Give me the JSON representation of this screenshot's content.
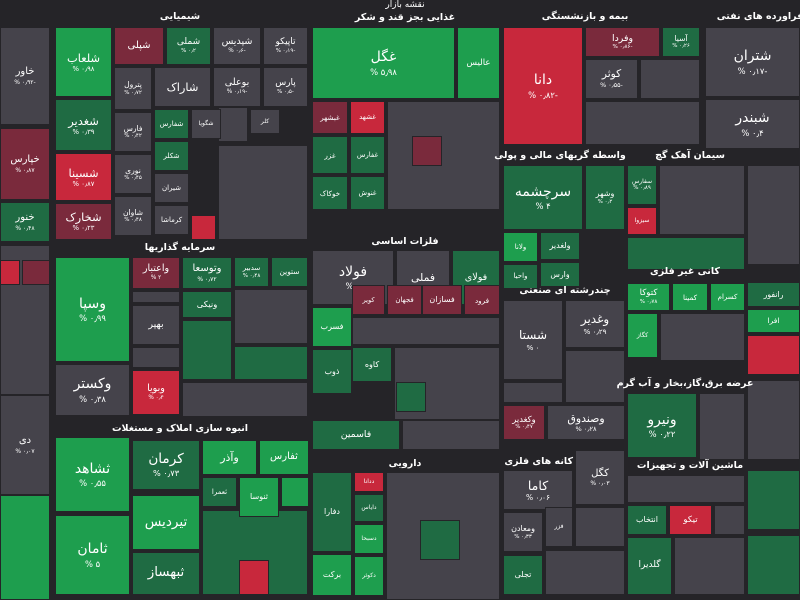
{
  "header": {
    "title": "نقشه بازار"
  },
  "sectors": [
    {
      "title": "شیمیایی",
      "tiles": [
        {
          "label": "شلعاب",
          "change": "۰٫۹۸ %",
          "color": "#1e9e4e"
        },
        {
          "label": "شپلی",
          "color": "#7a2a3c"
        },
        {
          "label": "شملی",
          "change": "۰٫۲ %",
          "color": "#1f6b43"
        },
        {
          "label": "شپدیس",
          "change": "-۰٫۶ %",
          "color": "#45434b"
        },
        {
          "label": "تاپیکو",
          "change": "-۰٫۱۹ %",
          "color": "#45434b"
        },
        {
          "label": "شغدیر",
          "change": "۰٫۳۹ %",
          "color": "#1f6b43"
        },
        {
          "label": "پترول",
          "change": "۰٫۷۲ %",
          "color": "#45434b"
        },
        {
          "label": "بوعلی",
          "change": "-۰٫۱۹ %",
          "color": "#45434b"
        },
        {
          "label": "پارس",
          "change": "-۰٫۵ %",
          "color": "#45434b"
        },
        {
          "label": "شاراک",
          "color": "#45434b"
        },
        {
          "label": "فارس",
          "change": "۰٫۴۲ %",
          "color": "#45434b"
        },
        {
          "label": "شفارس",
          "color": "#1f6b43"
        },
        {
          "label": "شگویا",
          "color": "#45434b"
        },
        {
          "label": "کلر",
          "color": "#45434b"
        },
        {
          "label": "شسینا",
          "change": "۰٫۸۷ %",
          "color": "#c8283c"
        },
        {
          "label": "نوری",
          "change": "۰٫۴۵ %",
          "color": "#45434b"
        },
        {
          "label": "شکلر",
          "color": "#1f6b43"
        },
        {
          "label": "شیران",
          "color": "#45434b"
        },
        {
          "label": "شخارک",
          "change": "۰٫۲۳ %",
          "color": "#7a2a3c"
        },
        {
          "label": "شاوان",
          "change": "۰٫۴۸ %",
          "color": "#45434b"
        },
        {
          "label": "کرماشا",
          "color": "#45434b"
        }
      ]
    },
    {
      "title": "سرمایه گذاریها",
      "tiles": [
        {
          "label": "وسپا",
          "change": "۰٫۹۹ %",
          "color": "#1e9e4e"
        },
        {
          "label": "واعتبار",
          "change": "۲ %",
          "color": "#7a2a3c"
        },
        {
          "label": "وتوسعا",
          "change": "۰٫۷۲ %",
          "color": "#1f6b43"
        },
        {
          "label": "سدبیر",
          "change": "۰٫۴۸ %",
          "color": "#1f6b43"
        },
        {
          "label": "ستوین",
          "color": "#1f6b43"
        },
        {
          "label": "ونیکی",
          "color": "#1f6b43"
        },
        {
          "label": "بهپر",
          "color": "#45434b"
        },
        {
          "label": "وکستر",
          "change": "۰٫۳۸ %",
          "color": "#45434b"
        },
        {
          "label": "وبویا",
          "change": "۰٫۴ %",
          "color": "#c8283c"
        }
      ]
    },
    {
      "title": "انبوه سازی املاک و مستغلات",
      "tiles": [
        {
          "label": "ثشاهد",
          "change": "۰٫۵۵ %",
          "color": "#1e9e4e"
        },
        {
          "label": "ثامان",
          "change": "۵ %",
          "color": "#1e9e4e"
        },
        {
          "label": "کرمان",
          "change": "۰٫۷۳ %",
          "color": "#1f6b43"
        },
        {
          "label": "وآذر",
          "color": "#1e9e4e"
        },
        {
          "label": "ثفارس",
          "color": "#1e9e4e"
        },
        {
          "label": "ثعمرا",
          "color": "#1f6b43"
        },
        {
          "label": "ثنوسا",
          "color": "#1e9e4e"
        },
        {
          "label": "تیردیس",
          "color": "#1e9e4e"
        },
        {
          "label": "ثبهساز",
          "color": "#1f6b43"
        }
      ]
    },
    {
      "title": "غذایی بجز قند و شکر",
      "tiles": [
        {
          "label": "غگل",
          "change": "۵٫۹۸ %",
          "color": "#1e9e4e"
        },
        {
          "label": "عالیس",
          "color": "#1e9e4e"
        },
        {
          "label": "غبشهر",
          "color": "#7a2a3c"
        },
        {
          "label": "غشهد",
          "color": "#c8283c"
        },
        {
          "label": "غزر",
          "color": "#1f6b43"
        },
        {
          "label": "غفارس",
          "color": "#1f6b43"
        },
        {
          "label": "خوکاک",
          "color": "#1f6b43"
        },
        {
          "label": "غنوش",
          "color": "#1f6b43"
        }
      ]
    },
    {
      "title": "فلزات اساسی",
      "tiles": [
        {
          "label": "فولاد",
          "change": "۰ %",
          "color": "#45434b"
        },
        {
          "label": "فملی",
          "color": "#45434b"
        },
        {
          "label": "فولای",
          "color": "#1f6b43"
        },
        {
          "label": "فسرب",
          "color": "#1e9e4e"
        },
        {
          "label": "کویر",
          "color": "#7a2a3c"
        },
        {
          "label": "فجهان",
          "color": "#7a2a3c"
        },
        {
          "label": "فسازان",
          "color": "#7a2a3c"
        },
        {
          "label": "فرود",
          "color": "#7a2a3c"
        },
        {
          "label": "ذوب",
          "color": "#1f6b43"
        },
        {
          "label": "کاوه",
          "color": "#1f6b43"
        },
        {
          "label": "فاسمین",
          "color": "#1f6b43"
        }
      ]
    },
    {
      "title": "دارویی",
      "tiles": [
        {
          "label": "دفارا",
          "color": "#1f6b43"
        },
        {
          "label": "ددانا",
          "color": "#c8283c"
        },
        {
          "label": "دایاس",
          "color": "#1f6b43"
        },
        {
          "label": "دسبحا",
          "color": "#1e9e4e"
        },
        {
          "label": "دکوثر",
          "color": "#1e9e4e"
        },
        {
          "label": "برکت",
          "color": "#1e9e4e"
        }
      ]
    },
    {
      "title": "بیمه و بازنشستگی",
      "tiles": [
        {
          "label": "دانا",
          "change": "-۰٫۸۲ %",
          "color": "#c8283c"
        },
        {
          "label": "وفردا",
          "change": "-۰٫۸۶ %",
          "color": "#7a2a3c"
        },
        {
          "label": "آسیا",
          "change": "۰٫۲۶ %",
          "color": "#1f6b43"
        },
        {
          "label": "کوثر",
          "change": "-۰٫۵۵ %",
          "color": "#45434b"
        }
      ]
    },
    {
      "title": "واسطه گریهای مالی و پولی",
      "tiles": [
        {
          "label": "سرچشمه",
          "change": "۴ %",
          "color": "#1f6b43"
        },
        {
          "label": "وشهر",
          "change": "۰٫۲ %",
          "color": "#1f6b43"
        },
        {
          "label": "ولانا",
          "color": "#1e9e4e"
        },
        {
          "label": "ولغدیر",
          "color": "#1f6b43"
        },
        {
          "label": "وارس",
          "color": "#1f6b43"
        },
        {
          "label": "واحیا",
          "color": "#1f6b43"
        }
      ]
    },
    {
      "title": "چندرشته ای صنعتی",
      "tiles": [
        {
          "label": "شستا",
          "change": "۰ %",
          "color": "#45434b"
        },
        {
          "label": "وغدیر",
          "change": "۰٫۲۹ %",
          "color": "#45434b"
        },
        {
          "label": "وکغدیر",
          "change": "۰٫۴۷ %",
          "color": "#7a2a3c"
        },
        {
          "label": "وصندوق",
          "change": "۰٫۲۸ %",
          "color": "#45434b"
        }
      ]
    },
    {
      "title": "استخراج کانه های فلزی",
      "tiles": [
        {
          "label": "کاما",
          "change": "۰٫۰۶ %",
          "color": "#45434b"
        },
        {
          "label": "کگل",
          "change": "۰٫۰۳ %",
          "color": "#45434b"
        },
        {
          "label": "فزر",
          "color": "#45434b"
        },
        {
          "label": "ومعادن",
          "change": "۰٫۳۳ %",
          "color": "#45434b"
        },
        {
          "label": "تجلی",
          "color": "#1f6b43"
        }
      ]
    },
    {
      "title": "سیمان آهک گچ",
      "tiles": [
        {
          "label": "سفارس",
          "change": "۰٫۸۹ %",
          "color": "#1f6b43"
        },
        {
          "label": "سیزوا",
          "color": "#c8283c"
        }
      ]
    },
    {
      "title": "کانی غیر فلزی",
      "tiles": [
        {
          "label": "کتوکا",
          "change": "۰٫۷۸ %",
          "color": "#1e9e4e"
        },
        {
          "label": "کمینا",
          "color": "#1e9e4e"
        },
        {
          "label": "کسرام",
          "color": "#1e9e4e"
        },
        {
          "label": "کگاز",
          "color": "#1e9e4e"
        }
      ]
    },
    {
      "title": "عرضه برق،گاز،بخار و آب گرم",
      "tiles": [
        {
          "label": "ونیرو",
          "change": "۰٫۲۲ %",
          "color": "#1f6b43"
        }
      ]
    },
    {
      "title": "ماشین آلات و تجهیزات",
      "tiles": [
        {
          "label": "انتخاب",
          "color": "#1f6b43"
        },
        {
          "label": "تیکو",
          "color": "#c8283c"
        },
        {
          "label": "گلدیرا",
          "color": "#1f6b43"
        }
      ]
    },
    {
      "title": "فراورده های نفتی",
      "tiles": [
        {
          "label": "شتران",
          "change": "-۰٫۱۷ %",
          "color": "#45434b"
        },
        {
          "label": "شبندر",
          "change": "۰٫۴ %",
          "color": "#45434b"
        }
      ]
    },
    {
      "tiles": [
        {
          "label": "خاور",
          "change": "-۰٫۹۲ %",
          "color": "#45434b"
        },
        {
          "label": "خپارس",
          "change": "۰٫۸۷ %",
          "color": "#7a2a3c"
        },
        {
          "label": "خنور",
          "change": "۰٫۴۸ %",
          "color": "#1f6b43"
        },
        {
          "label": "دی",
          "change": "۰٫۰۷ %",
          "color": "#45434b"
        },
        {
          "label": "رانفور",
          "color": "#1f6b43"
        },
        {
          "label": "افرا",
          "color": "#1e9e4e"
        }
      ]
    }
  ]
}
